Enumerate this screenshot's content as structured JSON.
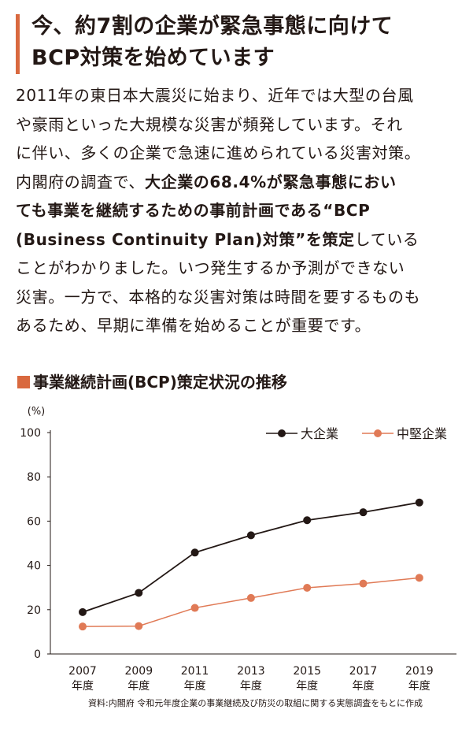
{
  "heading": {
    "line1": "今、約7割の企業が緊急事態に向けて",
    "line2": "BCP対策を始めています",
    "accent_color": "#d9693f"
  },
  "body": {
    "l1": "2011年の東日本大震災に始まり、近年では大型の台風",
    "l2": "や豪雨といった大規模な災害が頻発しています。それ",
    "l3": "に伴い、多くの企業で急速に進められている災害対策。",
    "l4a": "内閣府の調査で、",
    "l4b": "大企業の68.4%が緊急事態におい",
    "l5": "ても事業を継続するための事前計画である“BCP",
    "l6a": "(Business Continuity Plan)対策”を策定",
    "l6b": "している",
    "l7": "ことがわかりました。いつ発生するか予測ができない",
    "l8": "災害。一方で、本格的な災害対策は時間を要するものも",
    "l9": "あるため、早期に準備を始めることが重要です。"
  },
  "source": "資料:内閣府 令和元年度企業の事業継続及び防災の取組に関する実態調査をもとに作成",
  "chart_data": {
    "type": "line",
    "title": "事業継続計画(BCP)策定状況の推移",
    "title_marker_color": "#d9693f",
    "yunit": "(%)",
    "xlabel": "",
    "ylabel": "",
    "ylim": [
      0,
      100
    ],
    "yticks": [
      0,
      20,
      40,
      60,
      80,
      100
    ],
    "categories": [
      "2007",
      "2009",
      "2011",
      "2013",
      "2015",
      "2017",
      "2019"
    ],
    "category_suffix": "年度",
    "grid": false,
    "legend_position": "top-right",
    "series": [
      {
        "name": "大企業",
        "color": "#231815",
        "values": [
          18.9,
          27.6,
          45.8,
          53.6,
          60.4,
          64.0,
          68.4
        ]
      },
      {
        "name": "中堅企業",
        "color": "#e07a56",
        "values": [
          12.4,
          12.6,
          20.8,
          25.3,
          29.9,
          31.8,
          34.4
        ]
      }
    ]
  }
}
